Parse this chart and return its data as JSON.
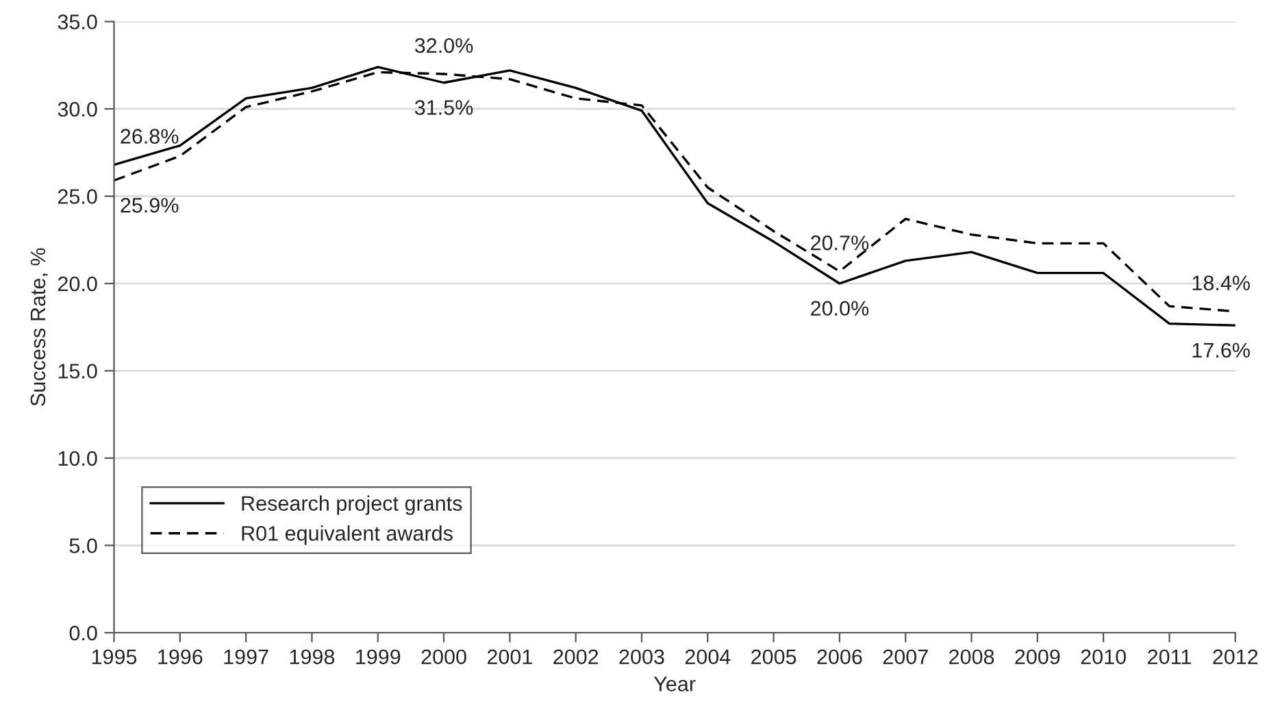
{
  "chart_data": {
    "type": "line",
    "xlabel": "Year",
    "ylabel": "Success Rate, %",
    "x": [
      1995,
      1996,
      1997,
      1998,
      1999,
      2000,
      2001,
      2002,
      2003,
      2004,
      2005,
      2006,
      2007,
      2008,
      2009,
      2010,
      2011,
      2012
    ],
    "series": [
      {
        "name": "Research project grants",
        "color": "#000000",
        "line_style": "solid",
        "values": [
          26.8,
          27.9,
          30.6,
          31.2,
          32.4,
          31.5,
          32.2,
          31.2,
          29.9,
          24.6,
          22.4,
          20.0,
          21.3,
          21.8,
          20.6,
          20.6,
          17.7,
          17.6
        ]
      },
      {
        "name": "R01 equivalent awards",
        "color": "#000000",
        "line_style": "dashed",
        "values": [
          25.9,
          27.3,
          30.1,
          31.0,
          32.1,
          32.0,
          31.7,
          30.6,
          30.2,
          25.5,
          23.0,
          20.7,
          23.7,
          22.8,
          22.3,
          22.3,
          18.7,
          18.4
        ]
      }
    ],
    "annotations": [
      {
        "text": "26.8%",
        "x": 1995,
        "y": 26.8
      },
      {
        "text": "25.9%",
        "x": 1995,
        "y": 25.9
      },
      {
        "text": "32.0%",
        "x": 2000,
        "y": 32.0
      },
      {
        "text": "31.5%",
        "x": 2000,
        "y": 31.5
      },
      {
        "text": "20.7%",
        "x": 2006,
        "y": 20.7
      },
      {
        "text": "20.0%",
        "x": 2006,
        "y": 20.0
      },
      {
        "text": "18.4%",
        "x": 2012,
        "y": 18.4
      },
      {
        "text": "17.6%",
        "x": 2012,
        "y": 17.6
      }
    ],
    "xlim": [
      1995,
      2012
    ],
    "xticks": [
      1995,
      1996,
      1997,
      1998,
      1999,
      2000,
      2001,
      2002,
      2003,
      2004,
      2005,
      2006,
      2007,
      2008,
      2009,
      2010,
      2011,
      2012
    ],
    "ylim": [
      0,
      35
    ],
    "yticks": [
      {
        "value": 0,
        "label": "0.0"
      },
      {
        "value": 5,
        "label": "5.0"
      },
      {
        "value": 10,
        "label": "10.0"
      },
      {
        "value": 15,
        "label": "15.0"
      },
      {
        "value": 20,
        "label": "20.0"
      },
      {
        "value": 25,
        "label": "25.0"
      },
      {
        "value": 30,
        "label": "30.0"
      },
      {
        "value": 35,
        "label": "35.0"
      }
    ],
    "grid": "y",
    "legend": "bottom left",
    "marker": "none"
  }
}
